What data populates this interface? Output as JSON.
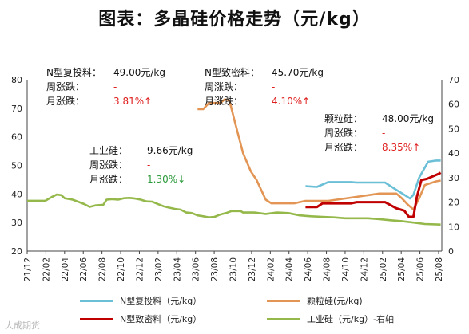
{
  "title": "图表：多晶硅价格走势（元/kg）",
  "chart_data": {
    "type": "line",
    "x": [
      "21/12",
      "22/02",
      "22/04",
      "22/06",
      "22/08",
      "22/10",
      "22/12",
      "23/02",
      "23/04",
      "23/06",
      "23/08",
      "23/10",
      "23/12",
      "24/02",
      "24/04",
      "24/06",
      "24/08",
      "24/10",
      "24/12",
      "25/02",
      "25/04",
      "25/06",
      "25/08"
    ],
    "ylim_left": [
      20,
      80
    ],
    "yticks_left": [
      "80",
      "70",
      "60",
      "50",
      "40",
      "30",
      "20"
    ],
    "ylim_right": [
      0,
      70
    ],
    "yticks_right": [
      "70",
      "60",
      "50",
      "40",
      "30",
      "20",
      "10",
      "0"
    ],
    "grid": false,
    "legend_position": "bottom",
    "series": [
      {
        "name": "N型复投料（元/kg）",
        "color": "#6bbfd6",
        "axis": "right",
        "points": [
          [
            24.5,
            26.5
          ],
          [
            25.5,
            26.2
          ],
          [
            26.5,
            28.2
          ],
          [
            28.5,
            28.2
          ],
          [
            29.0,
            28.0
          ],
          [
            31.5,
            28.0
          ],
          [
            32.5,
            25.0
          ],
          [
            33.2,
            23.0
          ],
          [
            33.7,
            21.5
          ],
          [
            34.0,
            23.0
          ],
          [
            34.5,
            30.0
          ],
          [
            35.3,
            36.5
          ],
          [
            36.0,
            37.0
          ],
          [
            36.4,
            37.0
          ]
        ]
      },
      {
        "name": "颗粒硅(元/kg)",
        "color": "#e29554",
        "axis": "right",
        "points": [
          [
            15.0,
            58.0
          ],
          [
            15.5,
            58.0
          ],
          [
            16.0,
            60.5
          ],
          [
            17.0,
            60.5
          ],
          [
            17.4,
            62.0
          ],
          [
            17.8,
            61.5
          ],
          [
            18.3,
            52.5
          ],
          [
            19.0,
            40.0
          ],
          [
            19.7,
            32.5
          ],
          [
            20.2,
            29.0
          ],
          [
            21.0,
            21.0
          ],
          [
            21.5,
            19.5
          ],
          [
            23.5,
            19.5
          ],
          [
            24.5,
            20.5
          ],
          [
            26.5,
            20.5
          ],
          [
            28.0,
            21.5
          ],
          [
            31.0,
            23.5
          ],
          [
            32.5,
            23.5
          ],
          [
            33.0,
            21.5
          ],
          [
            33.5,
            19.0
          ],
          [
            34.0,
            17.0
          ],
          [
            34.5,
            21.5
          ],
          [
            35.0,
            27.0
          ],
          [
            36.0,
            28.5
          ],
          [
            36.4,
            28.8
          ]
        ]
      },
      {
        "name": "N型致密料（元/kg）",
        "color": "#c00000",
        "axis": "right",
        "points": [
          [
            24.5,
            18.0
          ],
          [
            25.5,
            18.0
          ],
          [
            26.0,
            19.5
          ],
          [
            28.5,
            19.5
          ],
          [
            29.0,
            20.0
          ],
          [
            31.5,
            20.0
          ],
          [
            32.5,
            17.5
          ],
          [
            33.2,
            16.5
          ],
          [
            33.6,
            14.0
          ],
          [
            34.0,
            14.0
          ],
          [
            34.3,
            22.0
          ],
          [
            34.7,
            29.0
          ],
          [
            35.2,
            29.5
          ],
          [
            35.7,
            30.5
          ],
          [
            36.2,
            31.5
          ],
          [
            36.4,
            32.0
          ]
        ]
      },
      {
        "name": "工业硅（元/kg）-右轴",
        "color": "#94b84a",
        "axis": "left",
        "points": [
          [
            0.0,
            37.6
          ],
          [
            1.6,
            37.6
          ],
          [
            2.2,
            39.0
          ],
          [
            2.6,
            39.8
          ],
          [
            3.0,
            39.6
          ],
          [
            3.3,
            38.5
          ],
          [
            4.0,
            38.0
          ],
          [
            5.0,
            36.5
          ],
          [
            5.5,
            35.5
          ],
          [
            6.0,
            36.0
          ],
          [
            6.7,
            36.2
          ],
          [
            7.0,
            38.0
          ],
          [
            7.5,
            38.2
          ],
          [
            8.0,
            38.0
          ],
          [
            8.5,
            38.5
          ],
          [
            9.0,
            38.6
          ],
          [
            9.5,
            38.4
          ],
          [
            10.0,
            38.0
          ],
          [
            10.5,
            37.4
          ],
          [
            11.0,
            37.3
          ],
          [
            11.5,
            36.5
          ],
          [
            12.0,
            35.7
          ],
          [
            12.5,
            35.2
          ],
          [
            13.0,
            34.8
          ],
          [
            13.5,
            34.5
          ],
          [
            14.0,
            33.5
          ],
          [
            14.5,
            33.3
          ],
          [
            15.0,
            32.5
          ],
          [
            15.5,
            32.2
          ],
          [
            16.0,
            31.8
          ],
          [
            16.5,
            32.0
          ],
          [
            17.0,
            32.8
          ],
          [
            17.5,
            33.3
          ],
          [
            18.0,
            34.0
          ],
          [
            18.8,
            34.0
          ],
          [
            19.0,
            33.5
          ],
          [
            20.0,
            33.5
          ],
          [
            21.0,
            33.0
          ],
          [
            22.0,
            33.5
          ],
          [
            23.0,
            33.3
          ],
          [
            24.0,
            32.5
          ],
          [
            25.0,
            32.2
          ],
          [
            26.0,
            32.0
          ],
          [
            27.0,
            31.8
          ],
          [
            28.0,
            31.5
          ],
          [
            29.0,
            31.5
          ],
          [
            30.0,
            31.5
          ],
          [
            31.0,
            31.2
          ],
          [
            32.0,
            30.8
          ],
          [
            33.0,
            30.5
          ],
          [
            34.0,
            30.0
          ],
          [
            35.0,
            29.5
          ],
          [
            36.4,
            29.3
          ]
        ]
      }
    ]
  },
  "annotations": {
    "n_fut": {
      "name": "N型复投料：",
      "price": "49.00元/kg",
      "week_label": "周涨跌：",
      "week_val": "-",
      "month_label": "月涨跌：",
      "month_val": "3.81%↑"
    },
    "n_dense": {
      "name": "N型致密料：",
      "price": "45.70元/kg",
      "week_label": "周涨跌：",
      "week_val": "-",
      "month_label": "月涨跌：",
      "month_val": "4.10%↑"
    },
    "granular": {
      "name": "颗粒硅：",
      "price": "48.00元/kg",
      "week_label": "周涨跌：",
      "week_val": "-",
      "month_label": "月涨跌：",
      "month_val": "8.35%↑"
    },
    "industrial": {
      "name": "工业硅：",
      "price": "9.66元/kg",
      "week_label": "周涨跌：",
      "week_val": "-",
      "month_label": "月涨跌：",
      "month_val": "1.30%↓"
    }
  },
  "watermark": "大成期货"
}
